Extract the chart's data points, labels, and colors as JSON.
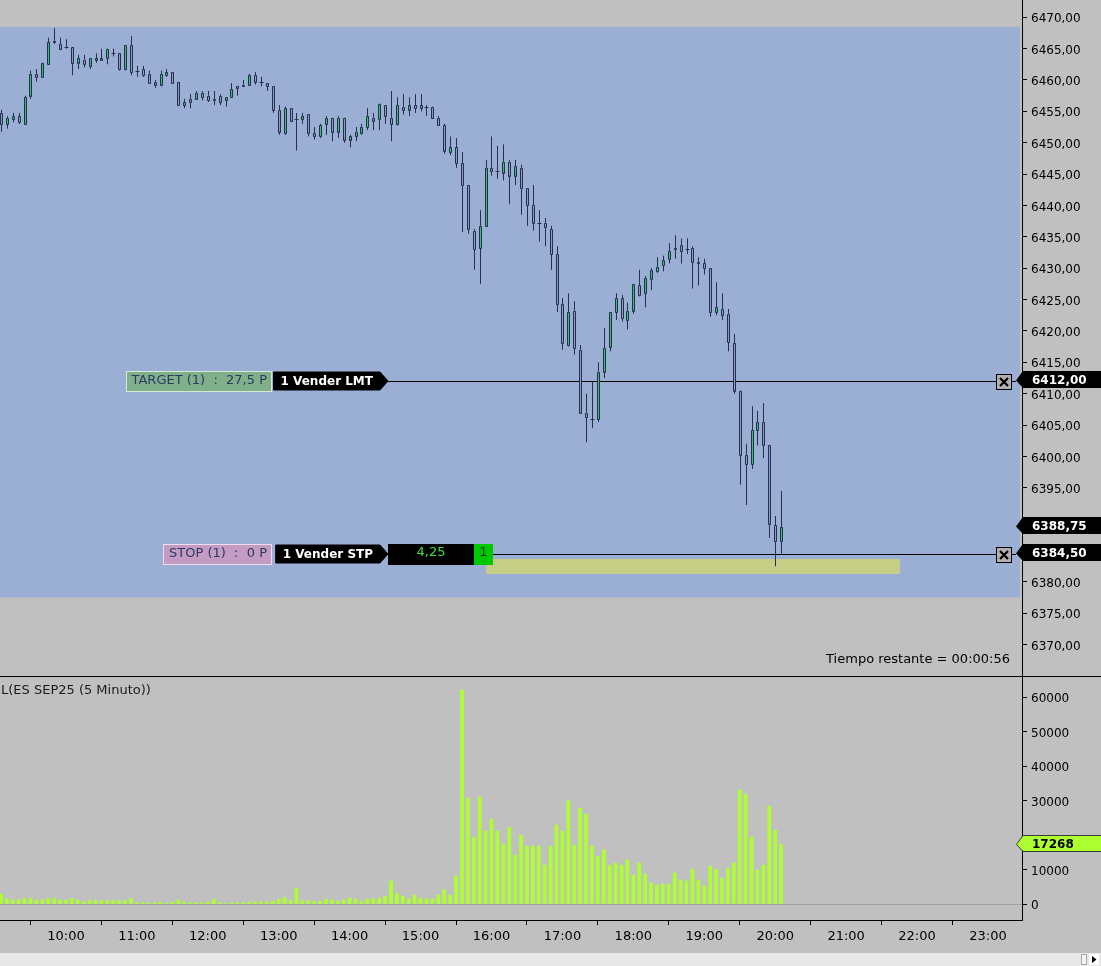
{
  "chart_data": [
    {
      "type": "candlestick",
      "x": [
        9.0833,
        9.1667,
        9.25,
        9.3333,
        9.4167,
        9.5,
        9.5833,
        9.6667,
        9.75,
        9.8333,
        9.9167,
        10,
        10.0833,
        10.1667,
        10.25,
        10.3333,
        10.4167,
        10.5,
        10.5833,
        10.6667,
        10.75,
        10.8333,
        10.9167,
        11,
        11.0833,
        11.1667,
        11.25,
        11.3333,
        11.4167,
        11.5,
        11.5833,
        11.6667,
        11.75,
        11.8333,
        11.9167,
        12,
        12.0833,
        12.1667,
        12.25,
        12.3333,
        12.4167,
        12.5,
        12.5833,
        12.6667,
        12.75,
        12.8333,
        12.9167,
        13,
        13.0833,
        13.1667,
        13.25,
        13.3333,
        13.4167,
        13.5,
        13.5833,
        13.6667,
        13.75,
        13.8333,
        13.9167,
        14,
        14.0833,
        14.1667,
        14.25,
        14.3333,
        14.4167,
        14.5,
        14.5833,
        14.6667,
        14.75,
        14.8333,
        14.9167,
        15,
        15.0833,
        15.1667,
        15.25,
        15.3333,
        15.4167,
        15.5,
        15.5833,
        15.6667,
        15.75,
        15.8333,
        15.9167,
        16,
        16.0833,
        16.1667,
        16.25,
        16.3333,
        16.4167,
        16.5,
        16.5833,
        16.6667,
        16.75,
        16.8333,
        16.9167,
        17,
        17.0833,
        17.1667,
        17.25,
        17.3333,
        17.4167,
        17.5,
        17.5833,
        17.6667,
        17.75,
        17.8333,
        17.9167,
        18,
        18.0833,
        18.1667,
        18.25,
        18.3333,
        18.4167,
        18.5,
        18.5833,
        18.6667,
        18.75,
        18.8333,
        18.9167,
        19,
        19.0833,
        19.1667,
        19.25,
        19.3333,
        19.4167,
        19.5,
        19.5833,
        19.6667,
        19.75,
        19.8333,
        19.9167,
        20,
        20.0833
      ],
      "ohlc": [
        [
          6454.75,
          6455.25,
          6451.75,
          6453
        ],
        [
          6453,
          6454.25,
          6452.25,
          6454
        ],
        [
          6453.75,
          6454.75,
          6453.25,
          6454.25
        ],
        [
          6454.25,
          6454.75,
          6453,
          6453.25
        ],
        [
          6453,
          6457.5,
          6453,
          6457.25
        ],
        [
          6457.5,
          6461.5,
          6457,
          6461
        ],
        [
          6461,
          6461.75,
          6459.75,
          6460.5
        ],
        [
          6460.5,
          6462.75,
          6460.5,
          6462.75
        ],
        [
          6462.5,
          6466.75,
          6462.5,
          6466
        ],
        [
          6466.25,
          6468.25,
          6465.75,
          6466
        ],
        [
          6465.75,
          6466.75,
          6464.75,
          6465
        ],
        [
          6465.25,
          6466.5,
          6465,
          6465.25
        ],
        [
          6465.25,
          6465.25,
          6460.75,
          6462.75
        ],
        [
          6462.75,
          6464,
          6461.75,
          6463.5
        ],
        [
          6463.25,
          6464,
          6462,
          6462.5
        ],
        [
          6462.25,
          6463.5,
          6461.75,
          6463.5
        ],
        [
          6463.5,
          6464.25,
          6462.75,
          6463.25
        ],
        [
          6463.25,
          6465,
          6463.25,
          6463.5
        ],
        [
          6463.5,
          6465,
          6462.5,
          6465
        ],
        [
          6464.25,
          6465,
          6463.75,
          6464.25
        ],
        [
          6464.25,
          6464.25,
          6461.5,
          6461.75
        ],
        [
          6461.75,
          6465.5,
          6461.5,
          6465.5
        ],
        [
          6465.5,
          6467,
          6460.75,
          6461.25
        ],
        [
          6461.5,
          6462.25,
          6460.5,
          6461.5
        ],
        [
          6461.75,
          6462.25,
          6460.5,
          6460.75
        ],
        [
          6461,
          6461.5,
          6459.5,
          6459.5
        ],
        [
          6459.75,
          6460,
          6458.75,
          6459.25
        ],
        [
          6459.25,
          6461.5,
          6459,
          6461
        ],
        [
          6460.75,
          6461.75,
          6460.5,
          6461.25
        ],
        [
          6461.25,
          6461.25,
          6459.5,
          6459.5
        ],
        [
          6459.75,
          6459.75,
          6456,
          6456
        ],
        [
          6456,
          6457,
          6455.5,
          6456.5
        ],
        [
          6457,
          6457.75,
          6455.5,
          6456.5
        ],
        [
          6457,
          6458.25,
          6457,
          6458
        ],
        [
          6458,
          6458.25,
          6456.75,
          6457.25
        ],
        [
          6457.5,
          6458.25,
          6456.5,
          6456.75
        ],
        [
          6456.75,
          6458.25,
          6456,
          6457
        ],
        [
          6457.5,
          6457.75,
          6456,
          6456.5
        ],
        [
          6456.75,
          6457.25,
          6455.75,
          6457.25
        ],
        [
          6457.25,
          6459.5,
          6457.25,
          6458.5
        ],
        [
          6459,
          6459,
          6457.5,
          6458.75
        ],
        [
          6459.25,
          6460,
          6459,
          6459
        ],
        [
          6459.25,
          6461,
          6459.25,
          6460.75
        ],
        [
          6460.75,
          6461.25,
          6459.25,
          6459.75
        ],
        [
          6459.75,
          6460.5,
          6459,
          6459.75
        ],
        [
          6459.5,
          6459.5,
          6458.25,
          6459
        ],
        [
          6459,
          6459,
          6454.75,
          6455.25
        ],
        [
          6455.25,
          6456,
          6451.25,
          6451.75
        ],
        [
          6451.5,
          6455.75,
          6451.25,
          6455.5
        ],
        [
          6455.5,
          6455.5,
          6453.5,
          6453.5
        ],
        [
          6453.75,
          6454.75,
          6448.75,
          6453.75
        ],
        [
          6453.75,
          6454.75,
          6453,
          6454.25
        ],
        [
          6454.5,
          6454.5,
          6451,
          6451.5
        ],
        [
          6451.5,
          6452.5,
          6450.5,
          6451
        ],
        [
          6451,
          6453,
          6450.75,
          6452.75
        ],
        [
          6453,
          6454.25,
          6451.25,
          6454
        ],
        [
          6454,
          6454,
          6450.25,
          6451.75
        ],
        [
          6451.75,
          6454.25,
          6450.75,
          6454
        ],
        [
          6454,
          6454,
          6450,
          6450.5
        ],
        [
          6450.5,
          6451.25,
          6449.25,
          6451
        ],
        [
          6451,
          6452.5,
          6450.25,
          6451.75
        ],
        [
          6451.5,
          6453,
          6451.25,
          6452.5
        ],
        [
          6452.5,
          6455.5,
          6452,
          6454.25
        ],
        [
          6454,
          6454.75,
          6452,
          6453.5
        ],
        [
          6453.75,
          6456.25,
          6452,
          6456.25
        ],
        [
          6456,
          6456,
          6453,
          6454.25
        ],
        [
          6454,
          6458.25,
          6450.25,
          6453
        ],
        [
          6453,
          6457.25,
          6452.75,
          6456
        ],
        [
          6455.75,
          6457.75,
          6454.5,
          6455.25
        ],
        [
          6455.25,
          6457.25,
          6454.25,
          6456
        ],
        [
          6456,
          6457.75,
          6454.75,
          6455.5
        ],
        [
          6455.5,
          6457.75,
          6455,
          6456
        ],
        [
          6455.75,
          6456,
          6454.25,
          6455.75
        ],
        [
          6455.75,
          6455.75,
          6454,
          6454
        ],
        [
          6454,
          6454.25,
          6452.75,
          6452.75
        ],
        [
          6452.75,
          6453,
          6448.25,
          6448.75
        ],
        [
          6448.5,
          6451,
          6448,
          6449.25
        ],
        [
          6449.25,
          6450.75,
          6446,
          6446.75
        ],
        [
          6446.75,
          6448.5,
          6435.75,
          6443.25
        ],
        [
          6443.25,
          6443.25,
          6435.5,
          6436.25
        ],
        [
          6436,
          6436.25,
          6429.75,
          6433
        ],
        [
          6433.25,
          6439.25,
          6427.5,
          6436.75
        ],
        [
          6436.75,
          6447.25,
          6436.75,
          6446
        ],
        [
          6446,
          6451,
          6444.75,
          6445.5
        ],
        [
          6445.5,
          6449.5,
          6444.25,
          6445.5
        ],
        [
          6445.25,
          6449.75,
          6444,
          6447
        ],
        [
          6447,
          6447.25,
          6440.25,
          6444.75
        ],
        [
          6444.75,
          6447.25,
          6443.25,
          6446.25
        ],
        [
          6446,
          6446.5,
          6438.5,
          6442.75
        ],
        [
          6442.75,
          6442.75,
          6436.75,
          6440
        ],
        [
          6440,
          6443.25,
          6436,
          6437.25
        ],
        [
          6437.25,
          6439.25,
          6434.25,
          6437.25
        ],
        [
          6437.25,
          6438,
          6433.5,
          6436.5
        ],
        [
          6436.25,
          6436.75,
          6429.75,
          6432.25
        ],
        [
          6432.25,
          6433.5,
          6423,
          6424.25
        ],
        [
          6424.25,
          6425.25,
          6417,
          6418
        ],
        [
          6417.75,
          6426,
          6417.5,
          6423
        ],
        [
          6423.25,
          6424.75,
          6416.25,
          6417.25
        ],
        [
          6417,
          6417.75,
          6407,
          6407
        ],
        [
          6407,
          6410,
          6402.25,
          6406.25
        ],
        [
          6406,
          6412,
          6404.5,
          6406
        ],
        [
          6406,
          6415,
          6405.5,
          6413.5
        ],
        [
          6413.5,
          6420.5,
          6412.5,
          6417.25
        ],
        [
          6417.5,
          6423,
          6416.75,
          6423
        ],
        [
          6423,
          6426,
          6421.75,
          6425.25
        ],
        [
          6425.25,
          6425.75,
          6421.5,
          6422
        ],
        [
          6421.75,
          6424.5,
          6420.25,
          6423.25
        ],
        [
          6423.25,
          6427.5,
          6422.75,
          6427.5
        ],
        [
          6427.25,
          6429.75,
          6425.5,
          6425.75
        ],
        [
          6426,
          6428.75,
          6423.75,
          6428.5
        ],
        [
          6428.25,
          6430,
          6426.5,
          6429.75
        ],
        [
          6429.5,
          6431.75,
          6429.25,
          6430.25
        ],
        [
          6430.5,
          6432,
          6429.5,
          6431.25
        ],
        [
          6431.5,
          6434,
          6430.75,
          6432.75
        ],
        [
          6433,
          6435.25,
          6431.5,
          6433.25
        ],
        [
          6433.75,
          6434.75,
          6430.75,
          6432.75
        ],
        [
          6433,
          6434.75,
          6432.25,
          6433
        ],
        [
          6433.25,
          6433.5,
          6426.75,
          6431
        ],
        [
          6431,
          6431.75,
          6427.25,
          6430.75
        ],
        [
          6430.75,
          6431.5,
          6429,
          6430
        ],
        [
          6430,
          6430,
          6422.25,
          6423
        ],
        [
          6423,
          6427.75,
          6422.5,
          6423.75
        ],
        [
          6423.5,
          6426,
          6421.75,
          6422.5
        ],
        [
          6422.75,
          6423.5,
          6416.75,
          6418.25
        ],
        [
          6418,
          6419.5,
          6410,
          6410.5
        ],
        [
          6410.5,
          6410.5,
          6395.5,
          6400.25
        ],
        [
          6400.25,
          6402,
          6392.25,
          6398.75
        ],
        [
          6398.75,
          6408,
          6398,
          6404.25
        ],
        [
          6404.25,
          6407.25,
          6401.75,
          6405.5
        ],
        [
          6405.5,
          6408.5,
          6399.75,
          6401.75
        ],
        [
          6401.75,
          6401.75,
          6387,
          6389.25
        ],
        [
          6389,
          6390.5,
          6382.5,
          6386.5
        ],
        [
          6386.5,
          6394.5,
          6384.5,
          6388.75
        ]
      ],
      "colors": [
        "#8a9bc4",
        "#2fc46d",
        "#2fc46d",
        "#8a9bc4",
        "#2fc46d",
        "#2fc46d",
        "#8a9bc4",
        "#2fc46d",
        "#2fc46d",
        "#8a9bc4",
        "#8a9bc4",
        "#262f4c",
        "#8a9bc4",
        "#2fc46d",
        "#8a9bc4",
        "#2fc46d",
        "#8a9bc4",
        "#2fc46d",
        "#2fc46d",
        "#262f4c",
        "#8a9bc4",
        "#2fc46d",
        "#8a9bc4",
        "#262f4c",
        "#8a9bc4",
        "#8a9bc4",
        "#8a9bc4",
        "#2fc46d",
        "#2fc46d",
        "#8a9bc4",
        "#8a9bc4",
        "#2fc46d",
        "#8a9bc4",
        "#2fc46d",
        "#8a9bc4",
        "#8a9bc4",
        "#2fc46d",
        "#8a9bc4",
        "#2fc46d",
        "#2fc46d",
        "#8a9bc4",
        "#8a9bc4",
        "#2fc46d",
        "#8a9bc4",
        "#262f4c",
        "#8a9bc4",
        "#8a9bc4",
        "#8a9bc4",
        "#2fc46d",
        "#8a9bc4",
        "#262f4c",
        "#2fc46d",
        "#8a9bc4",
        "#8a9bc4",
        "#2fc46d",
        "#2fc46d",
        "#8a9bc4",
        "#2fc46d",
        "#8a9bc4",
        "#2fc46d",
        "#2fc46d",
        "#2fc46d",
        "#2fc46d",
        "#8a9bc4",
        "#2fc46d",
        "#8a9bc4",
        "#8a9bc4",
        "#2fc46d",
        "#8a9bc4",
        "#2fc46d",
        "#8a9bc4",
        "#2fc46d",
        "#262f4c",
        "#8a9bc4",
        "#8a9bc4",
        "#8a9bc4",
        "#2fc46d",
        "#8a9bc4",
        "#8a9bc4",
        "#8a9bc4",
        "#8a9bc4",
        "#2fc46d",
        "#2fc46d",
        "#8a9bc4",
        "#262f4c",
        "#2fc46d",
        "#8a9bc4",
        "#2fc46d",
        "#8a9bc4",
        "#8a9bc4",
        "#8a9bc4",
        "#262f4c",
        "#8a9bc4",
        "#8a9bc4",
        "#8a9bc4",
        "#8a9bc4",
        "#2fc46d",
        "#8a9bc4",
        "#8a9bc4",
        "#8a9bc4",
        "#262f4c",
        "#2fc46d",
        "#2fc46d",
        "#2fc46d",
        "#2fc46d",
        "#8a9bc4",
        "#2fc46d",
        "#2fc46d",
        "#8a9bc4",
        "#2fc46d",
        "#2fc46d",
        "#2fc46d",
        "#2fc46d",
        "#2fc46d",
        "#2fc46d",
        "#8a9bc4",
        "#262f4c",
        "#8a9bc4",
        "#8a9bc4",
        "#8a9bc4",
        "#8a9bc4",
        "#2fc46d",
        "#8a9bc4",
        "#8a9bc4",
        "#8a9bc4",
        "#8a9bc4",
        "#8a9bc4",
        "#2fc46d",
        "#2fc46d",
        "#8a9bc4",
        "#8a9bc4",
        "#8a9bc4",
        "#2fc46d"
      ],
      "xlim": [
        9.07,
        23.48
      ],
      "ylim": [
        6365,
        6472.75
      ],
      "yticks": [
        {
          "value": 6370,
          "label": "6370,00"
        },
        {
          "value": 6375,
          "label": "6375,00"
        },
        {
          "value": 6380,
          "label": "6380,00"
        },
        {
          "value": 6385,
          "label": null
        },
        {
          "value": 6390,
          "label": null
        },
        {
          "value": 6395,
          "label": "6395,00"
        },
        {
          "value": 6400,
          "label": "6400,00"
        },
        {
          "value": 6405,
          "label": "6405,00"
        },
        {
          "value": 6410,
          "label": "6410,00"
        },
        {
          "value": 6415,
          "label": "6415,00"
        },
        {
          "value": 6420,
          "label": "6420,00"
        },
        {
          "value": 6425,
          "label": "6425,00"
        },
        {
          "value": 6430,
          "label": "6430,00"
        },
        {
          "value": 6435,
          "label": "6435,00"
        },
        {
          "value": 6440,
          "label": "6440,00"
        },
        {
          "value": 6445,
          "label": "6445,00"
        },
        {
          "value": 6450,
          "label": "6450,00"
        },
        {
          "value": 6455,
          "label": "6455,00"
        },
        {
          "value": 6460,
          "label": "6460,00"
        },
        {
          "value": 6465,
          "label": "6465,00"
        },
        {
          "value": 6470,
          "label": "6470,00"
        }
      ],
      "tick_labels": "y",
      "bands": [
        {
          "axis": "y",
          "from": 6377.5,
          "to": 6468.5,
          "color": "#9baed4"
        }
      ],
      "ref_lines": [
        {
          "axis": "y",
          "value": 6412,
          "label": "1 Vender LMT",
          "color": "#000000"
        },
        {
          "axis": "y",
          "value": 6384.5,
          "label": "1 Vender STP",
          "color": "#000000"
        }
      ],
      "annotations": [
        "TARGET (1)  :  27,5 P",
        "6412,00",
        "STOP (1)  :  0 P",
        "4,25",
        "1",
        "6384,50",
        "6388,75",
        "Tiempo restante = 00:00:56"
      ]
    },
    {
      "type": "bar",
      "title": "L(ES SEP25 (5 Minuto))",
      "x": [
        9.0833,
        9.1667,
        9.25,
        9.3333,
        9.4167,
        9.5,
        9.5833,
        9.6667,
        9.75,
        9.8333,
        9.9167,
        10,
        10.0833,
        10.1667,
        10.25,
        10.3333,
        10.4167,
        10.5,
        10.5833,
        10.6667,
        10.75,
        10.8333,
        10.9167,
        11,
        11.0833,
        11.1667,
        11.25,
        11.3333,
        11.4167,
        11.5,
        11.5833,
        11.6667,
        11.75,
        11.8333,
        11.9167,
        12,
        12.0833,
        12.1667,
        12.25,
        12.3333,
        12.4167,
        12.5,
        12.5833,
        12.6667,
        12.75,
        12.8333,
        12.9167,
        13,
        13.0833,
        13.1667,
        13.25,
        13.3333,
        13.4167,
        13.5,
        13.5833,
        13.6667,
        13.75,
        13.8333,
        13.9167,
        14,
        14.0833,
        14.1667,
        14.25,
        14.3333,
        14.4167,
        14.5,
        14.5833,
        14.6667,
        14.75,
        14.8333,
        14.9167,
        15,
        15.0833,
        15.1667,
        15.25,
        15.3333,
        15.4167,
        15.5,
        15.5833,
        15.6667,
        15.75,
        15.8333,
        15.9167,
        16,
        16.0833,
        16.1667,
        16.25,
        16.3333,
        16.4167,
        16.5,
        16.5833,
        16.6667,
        16.75,
        16.8333,
        16.9167,
        17,
        17.0833,
        17.1667,
        17.25,
        17.3333,
        17.4167,
        17.5,
        17.5833,
        17.6667,
        17.75,
        17.8333,
        17.9167,
        18,
        18.0833,
        18.1667,
        18.25,
        18.3333,
        18.4167,
        18.5,
        18.5833,
        18.6667,
        18.75,
        18.8333,
        18.9167,
        19,
        19.0833,
        19.1667,
        19.25,
        19.3333,
        19.4167,
        19.5,
        19.5833,
        19.6667,
        19.75,
        19.8333,
        19.9167,
        20,
        20.0833
      ],
      "values": [
        2900,
        1600,
        1200,
        1200,
        1600,
        1600,
        1200,
        1200,
        1600,
        1600,
        1200,
        1200,
        1600,
        1200,
        700,
        1000,
        1000,
        1000,
        1000,
        1000,
        1000,
        1000,
        1600,
        400,
        400,
        400,
        400,
        600,
        300,
        600,
        1200,
        600,
        400,
        400,
        400,
        600,
        1400,
        400,
        200,
        400,
        400,
        400,
        600,
        600,
        600,
        600,
        800,
        1400,
        1900,
        1000,
        4500,
        900,
        1000,
        800,
        800,
        1400,
        1200,
        900,
        1200,
        1700,
        1400,
        800,
        1500,
        1500,
        1700,
        2300,
        6700,
        3200,
        2300,
        1500,
        2600,
        1700,
        1500,
        1500,
        2600,
        4100,
        2600,
        8100,
        62000,
        30700,
        19400,
        31000,
        21200,
        24600,
        21200,
        17400,
        22300,
        14200,
        20000,
        16800,
        16800,
        16800,
        11300,
        16800,
        22900,
        21200,
        29900,
        17100,
        27800,
        26100,
        16800,
        13900,
        15700,
        11300,
        11900,
        11300,
        12800,
        8400,
        11900,
        8700,
        6100,
        5500,
        5800,
        5800,
        9000,
        7000,
        6700,
        10100,
        7000,
        5200,
        11000,
        10100,
        7500,
        10400,
        11900,
        33000,
        31900,
        19400,
        9900,
        11300,
        28400,
        21400,
        17268
      ],
      "color": "#adff2f",
      "xlim": [
        9.07,
        23.48
      ],
      "xticks": [
        {
          "value": 10,
          "label": "10:00"
        },
        {
          "value": 11,
          "label": "11:00"
        },
        {
          "value": 12,
          "label": "12:00"
        },
        {
          "value": 13,
          "label": "13:00"
        },
        {
          "value": 14,
          "label": "14:00"
        },
        {
          "value": 15,
          "label": "15:00"
        },
        {
          "value": 16,
          "label": "16:00"
        },
        {
          "value": 17,
          "label": "17:00"
        },
        {
          "value": 18,
          "label": "18:00"
        },
        {
          "value": 19,
          "label": "19:00"
        },
        {
          "value": 20,
          "label": "20:00"
        },
        {
          "value": 21,
          "label": "21:00"
        },
        {
          "value": 22,
          "label": "22:00"
        },
        {
          "value": 23,
          "label": "23:00"
        }
      ],
      "ylim": [
        -4600,
        65800
      ],
      "yticks": [
        0,
        10000,
        {
          "value": 20000,
          "label": null
        },
        30000,
        40000,
        50000,
        60000
      ],
      "ref_lines": [
        {
          "axis": "y",
          "value": 0,
          "color": "#a0a0a0"
        }
      ],
      "annotations": [
        "17268"
      ]
    }
  ]
}
